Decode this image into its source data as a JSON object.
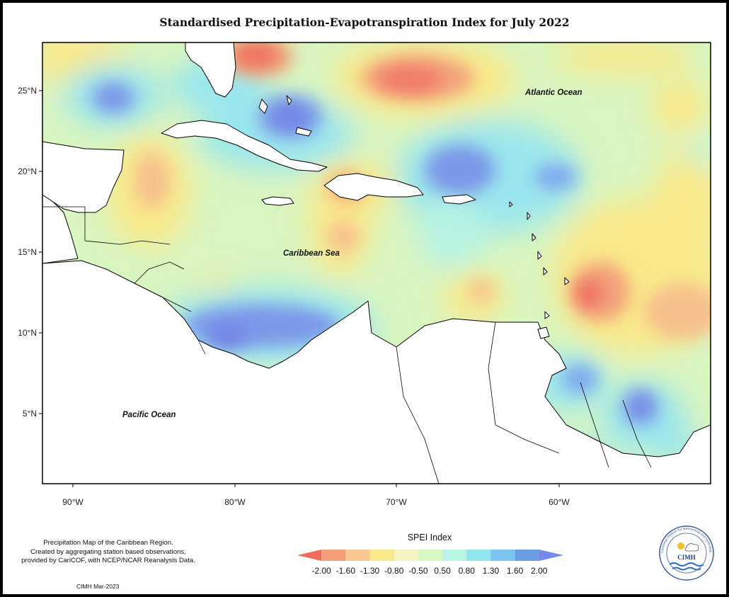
{
  "title": "Standardised Precipitation-Evapotranspiration Index for July 2022",
  "map": {
    "lat_labels": [
      "25°N",
      "20°N",
      "15°N",
      "10°N",
      "5°N"
    ],
    "lon_labels": [
      "90°W",
      "80°W",
      "70°W",
      "60°W"
    ],
    "place_labels": {
      "atlantic": "Atlantic Ocean",
      "caribbean": "Caribbean Sea",
      "pacific": "Pacific Ocean"
    }
  },
  "legend": {
    "title": "SPEI Index",
    "values": [
      "-2.00",
      "-1.60",
      "-1.30",
      "-0.80",
      "-0.50",
      "0.50",
      "0.80",
      "1.30",
      "1.60",
      "2.00"
    ],
    "colors": [
      "#f26b5b",
      "#f3a07a",
      "#f8c98f",
      "#fbe98e",
      "#f6f4c0",
      "#d7f7c2",
      "#b8f5e4",
      "#8fe6ec",
      "#7cc4f2",
      "#6a9ee4",
      "#7688e8"
    ]
  },
  "notes": {
    "line1": "Precipitation Map of the Caribbean Region.",
    "line2": "Created by aggregating station based observations,",
    "line3": "provided by CariCOF, with NCEP/NCAR Reanalysis Data.",
    "credit": "CIMH Mar-2023"
  },
  "logo": {
    "text": "CIMH",
    "ring_text": "Caribbean Institute for Meteorology and Hydrology"
  }
}
